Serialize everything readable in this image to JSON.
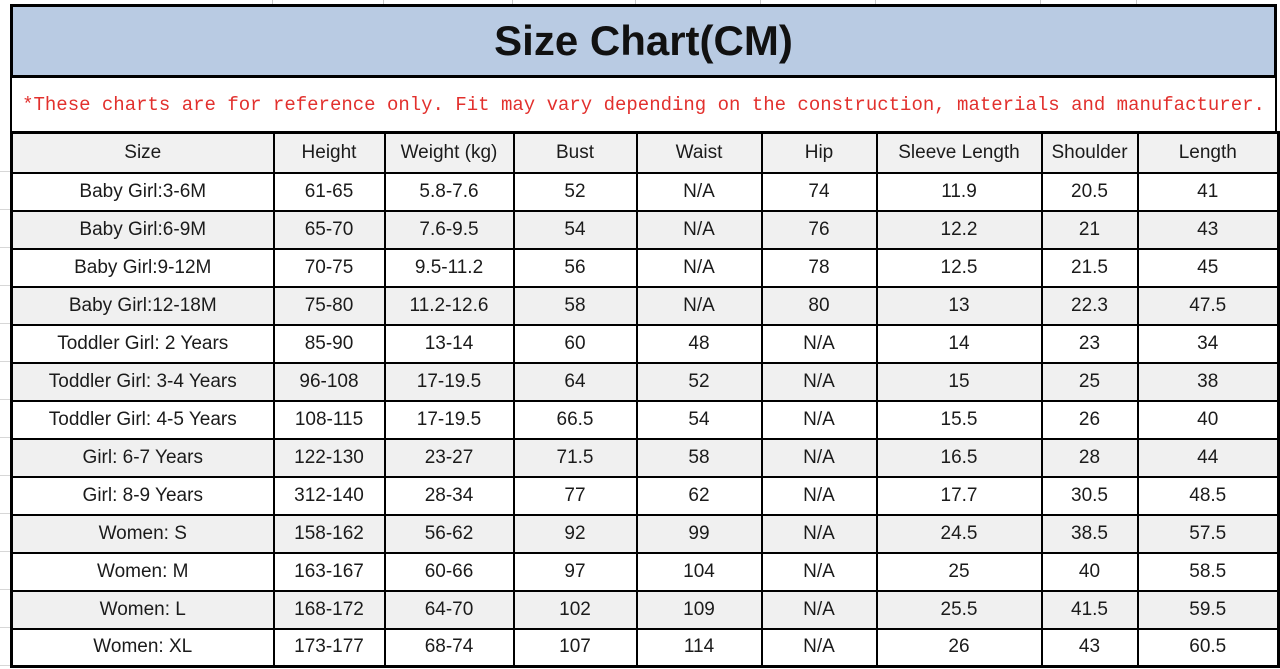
{
  "title": "Size Chart(CM)",
  "disclaimer": "*These charts are for reference only. Fit may vary depending on the construction, materials and manufacturer.",
  "colors": {
    "title_bg": "#b9cbe3",
    "disclaimer_text": "#e2302d",
    "header_bg": "#f1f1f1",
    "row_alt_bg": "#f0f0f0",
    "border": "#000000"
  },
  "chart_data": {
    "type": "table",
    "title": "Size Chart(CM)",
    "columns": [
      "Size",
      "Height",
      "Weight (kg)",
      "Bust",
      "Waist",
      "Hip",
      "Sleeve Length",
      "Shoulder",
      "Length"
    ],
    "rows": [
      [
        "Baby Girl:3-6M",
        "61-65",
        "5.8-7.6",
        "52",
        "N/A",
        "74",
        "11.9",
        "20.5",
        "41"
      ],
      [
        "Baby Girl:6-9M",
        "65-70",
        "7.6-9.5",
        "54",
        "N/A",
        "76",
        "12.2",
        "21",
        "43"
      ],
      [
        "Baby Girl:9-12M",
        "70-75",
        "9.5-11.2",
        "56",
        "N/A",
        "78",
        "12.5",
        "21.5",
        "45"
      ],
      [
        "Baby Girl:12-18M",
        "75-80",
        "11.2-12.6",
        "58",
        "N/A",
        "80",
        "13",
        "22.3",
        "47.5"
      ],
      [
        "Toddler Girl: 2 Years",
        "85-90",
        "13-14",
        "60",
        "48",
        "N/A",
        "14",
        "23",
        "34"
      ],
      [
        "Toddler Girl: 3-4 Years",
        "96-108",
        "17-19.5",
        "64",
        "52",
        "N/A",
        "15",
        "25",
        "38"
      ],
      [
        "Toddler Girl: 4-5 Years",
        "108-115",
        "17-19.5",
        "66.5",
        "54",
        "N/A",
        "15.5",
        "26",
        "40"
      ],
      [
        "Girl: 6-7 Years",
        "122-130",
        "23-27",
        "71.5",
        "58",
        "N/A",
        "16.5",
        "28",
        "44"
      ],
      [
        "Girl: 8-9 Years",
        "312-140",
        "28-34",
        "77",
        "62",
        "N/A",
        "17.7",
        "30.5",
        "48.5"
      ],
      [
        "Women: S",
        "158-162",
        "56-62",
        "92",
        "99",
        "N/A",
        "24.5",
        "38.5",
        "57.5"
      ],
      [
        "Women: M",
        "163-167",
        "60-66",
        "97",
        "104",
        "N/A",
        "25",
        "40",
        "58.5"
      ],
      [
        "Women: L",
        "168-172",
        "64-70",
        "102",
        "109",
        "N/A",
        "25.5",
        "41.5",
        "59.5"
      ],
      [
        "Women: XL",
        "173-177",
        "68-74",
        "107",
        "114",
        "N/A",
        "26",
        "43",
        "60.5"
      ]
    ]
  }
}
